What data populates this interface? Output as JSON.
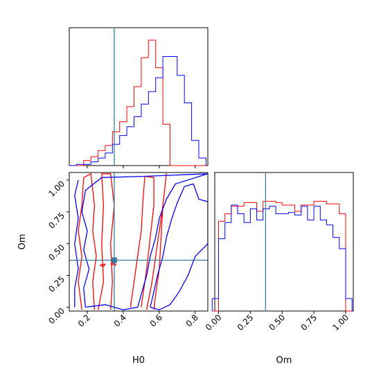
{
  "chart_data": {
    "type": "corner",
    "parameters": [
      "H0",
      "Om"
    ],
    "xlabel": "H0",
    "ylabel": "Om",
    "xlabel2": "Om",
    "h0_range": [
      0.1,
      0.87
    ],
    "om_range": [
      -0.03,
      1.06
    ],
    "h0_ticks": [
      {
        "value": 0.2,
        "label": "0.2"
      },
      {
        "value": 0.4,
        "label": "0.4"
      },
      {
        "value": 0.6,
        "label": "0.6"
      },
      {
        "value": 0.8,
        "label": "0.8"
      }
    ],
    "om_ticks": [
      {
        "value": 0.0,
        "label": "0.00"
      },
      {
        "value": 0.25,
        "label": "0.25"
      },
      {
        "value": 0.5,
        "label": "0.50"
      },
      {
        "value": 0.75,
        "label": "0.75"
      },
      {
        "value": 1.0,
        "label": "1.00"
      }
    ],
    "truth": {
      "H0": 0.35,
      "Om": 0.37
    },
    "colors": {
      "series_a": "#ff0000",
      "series_b": "#0000ff",
      "truth": "#3a7ca0"
    },
    "h0_hist": {
      "edges": [
        0.1,
        0.14,
        0.18,
        0.22,
        0.26,
        0.3,
        0.34,
        0.38,
        0.42,
        0.46,
        0.5,
        0.54,
        0.58,
        0.62,
        0.66,
        0.7,
        0.74,
        0.78,
        0.82,
        0.86
      ],
      "series_a": [
        0.0,
        0.0,
        0.04,
        0.07,
        0.12,
        0.16,
        0.27,
        0.35,
        0.47,
        0.63,
        0.86,
        1.0,
        0.78,
        0.33,
        0.0,
        0.0,
        0.0,
        0.0,
        0.0
      ],
      "series_b": [
        0.0,
        0.01,
        0.01,
        0.03,
        0.06,
        0.1,
        0.17,
        0.24,
        0.31,
        0.39,
        0.49,
        0.59,
        0.7,
        0.87,
        0.87,
        0.72,
        0.5,
        0.2,
        0.06
      ]
    },
    "om_hist": {
      "edges": [
        -0.05,
        0.0,
        0.05,
        0.1,
        0.15,
        0.2,
        0.25,
        0.3,
        0.35,
        0.4,
        0.45,
        0.5,
        0.55,
        0.6,
        0.65,
        0.7,
        0.75,
        0.8,
        0.85,
        0.9,
        0.95,
        1.0,
        1.05
      ],
      "series_a": [
        0.0,
        0.72,
        0.78,
        0.84,
        0.84,
        0.87,
        0.87,
        0.8,
        0.88,
        0.88,
        0.87,
        0.85,
        0.85,
        0.8,
        0.85,
        0.85,
        0.88,
        0.88,
        0.86,
        0.86,
        0.78,
        0.0
      ],
      "series_b": [
        0.1,
        0.58,
        0.71,
        0.85,
        0.78,
        0.71,
        0.82,
        0.73,
        0.82,
        0.84,
        0.78,
        0.78,
        0.79,
        0.77,
        0.84,
        0.73,
        0.84,
        0.73,
        0.69,
        0.59,
        0.5,
        0.1
      ]
    },
    "contours_a": [
      [
        [
          0.17,
          -0.02
        ],
        [
          0.15,
          0.2
        ],
        [
          0.17,
          0.4
        ],
        [
          0.15,
          0.6
        ],
        [
          0.17,
          0.8
        ],
        [
          0.18,
          1.02
        ],
        [
          0.22,
          1.05
        ],
        [
          0.24,
          0.8
        ],
        [
          0.23,
          0.6
        ],
        [
          0.25,
          0.4
        ],
        [
          0.23,
          0.2
        ],
        [
          0.24,
          -0.02
        ]
      ],
      [
        [
          0.26,
          -0.02
        ],
        [
          0.29,
          0.2
        ],
        [
          0.28,
          0.5
        ],
        [
          0.29,
          0.8
        ],
        [
          0.28,
          1.05
        ],
        [
          0.33,
          1.05
        ],
        [
          0.35,
          0.8
        ],
        [
          0.33,
          0.5
        ],
        [
          0.34,
          0.2
        ],
        [
          0.33,
          -0.02
        ]
      ],
      [
        [
          0.44,
          0.0
        ],
        [
          0.46,
          0.2
        ],
        [
          0.48,
          0.4
        ],
        [
          0.5,
          0.6
        ],
        [
          0.51,
          0.85
        ],
        [
          0.52,
          1.03
        ],
        [
          0.57,
          1.02
        ],
        [
          0.57,
          0.8
        ],
        [
          0.55,
          0.55
        ],
        [
          0.53,
          0.3
        ],
        [
          0.51,
          0.1
        ],
        [
          0.5,
          0.0
        ]
      ],
      [
        [
          0.53,
          -0.02
        ],
        [
          0.56,
          0.2
        ],
        [
          0.58,
          0.4
        ],
        [
          0.6,
          0.6
        ],
        [
          0.62,
          0.8
        ],
        [
          0.64,
          1.05
        ],
        [
          0.62,
          0.8
        ],
        [
          0.61,
          0.55
        ],
        [
          0.6,
          0.3
        ],
        [
          0.58,
          0.1
        ],
        [
          0.57,
          -0.02
        ]
      ],
      [
        [
          0.27,
          0.33
        ],
        [
          0.3,
          0.34
        ],
        [
          0.29,
          0.32
        ],
        [
          0.27,
          0.33
        ]
      ],
      [
        [
          0.33,
          0.34
        ],
        [
          0.35,
          0.35
        ],
        [
          0.36,
          0.33
        ],
        [
          0.33,
          0.34
        ]
      ]
    ],
    "contours_b": [
      [
        [
          0.19,
          0.0
        ],
        [
          0.18,
          0.15
        ],
        [
          0.21,
          0.3
        ],
        [
          0.18,
          0.45
        ],
        [
          0.2,
          0.6
        ],
        [
          0.17,
          0.75
        ],
        [
          0.19,
          0.92
        ],
        [
          0.28,
          1.02
        ],
        [
          0.52,
          1.03
        ],
        [
          0.87,
          1.05
        ],
        [
          0.69,
          0.97
        ],
        [
          0.64,
          0.85
        ],
        [
          0.6,
          0.7
        ],
        [
          0.58,
          0.55
        ],
        [
          0.55,
          0.4
        ],
        [
          0.53,
          0.25
        ],
        [
          0.5,
          0.1
        ],
        [
          0.48,
          0.0
        ],
        [
          0.4,
          -0.02
        ],
        [
          0.3,
          0.02
        ],
        [
          0.19,
          0.0
        ]
      ],
      [
        [
          0.55,
          0.0
        ],
        [
          0.57,
          0.12
        ],
        [
          0.59,
          0.25
        ],
        [
          0.62,
          0.4
        ],
        [
          0.64,
          0.55
        ],
        [
          0.67,
          0.7
        ],
        [
          0.7,
          0.82
        ],
        [
          0.74,
          0.95
        ],
        [
          0.79,
          0.97
        ],
        [
          0.82,
          0.85
        ],
        [
          0.87,
          0.83
        ],
        [
          0.87,
          0.5
        ],
        [
          0.8,
          0.4
        ],
        [
          0.76,
          0.25
        ],
        [
          0.71,
          0.12
        ],
        [
          0.66,
          0.02
        ],
        [
          0.6,
          -0.02
        ],
        [
          0.55,
          0.0
        ]
      ],
      [
        [
          0.13,
          0.0
        ],
        [
          0.13,
          0.15
        ],
        [
          0.15,
          0.3
        ],
        [
          0.13,
          0.5
        ],
        [
          0.15,
          0.7
        ],
        [
          0.13,
          0.88
        ],
        [
          0.15,
          1.0
        ]
      ]
    ]
  }
}
